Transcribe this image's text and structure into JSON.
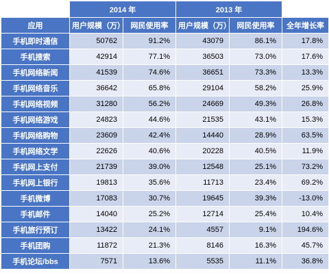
{
  "header": {
    "year_2014": "2014 年",
    "year_2013": "2013 年",
    "app": "应用",
    "users_2014": "用户规模（万）",
    "rate_2014": "网民使用率",
    "users_2013": "用户规模（万）",
    "rate_2013": "网民使用率",
    "growth": "全年增长率"
  },
  "rows": [
    {
      "app": "手机即时通信",
      "u14": "50762",
      "r14": "91.2%",
      "u13": "43079",
      "r13": "86.1%",
      "g": "17.8%"
    },
    {
      "app": "手机搜索",
      "u14": "42914",
      "r14": "77.1%",
      "u13": "36503",
      "r13": "73.0%",
      "g": "17.6%"
    },
    {
      "app": "手机网络新闻",
      "u14": "41539",
      "r14": "74.6%",
      "u13": "36651",
      "r13": "73.3%",
      "g": "13.3%"
    },
    {
      "app": "手机网络音乐",
      "u14": "36642",
      "r14": "65.8%",
      "u13": "29104",
      "r13": "58.2%",
      "g": "25.9%"
    },
    {
      "app": "手机网络视频",
      "u14": "31280",
      "r14": "56.2%",
      "u13": "24669",
      "r13": "49.3%",
      "g": "26.8%"
    },
    {
      "app": "手机网络游戏",
      "u14": "24823",
      "r14": "44.6%",
      "u13": "21535",
      "r13": "43.1%",
      "g": "15.3%"
    },
    {
      "app": "手机网络购物",
      "u14": "23609",
      "r14": "42.4%",
      "u13": "14440",
      "r13": "28.9%",
      "g": "63.5%"
    },
    {
      "app": "手机网络文学",
      "u14": "22626",
      "r14": "40.6%",
      "u13": "20228",
      "r13": "40.5%",
      "g": "11.9%"
    },
    {
      "app": "手机网上支付",
      "u14": "21739",
      "r14": "39.0%",
      "u13": "12548",
      "r13": "25.1%",
      "g": "73.2%"
    },
    {
      "app": "手机网上银行",
      "u14": "19813",
      "r14": "35.6%",
      "u13": "11713",
      "r13": "23.4%",
      "g": "69.2%"
    },
    {
      "app": "手机微博",
      "u14": "17083",
      "r14": "30.7%",
      "u13": "19645",
      "r13": "39.3%",
      "g": "-13.0%"
    },
    {
      "app": "手机邮件",
      "u14": "14040",
      "r14": "25.2%",
      "u13": "12714",
      "r13": "25.4%",
      "g": "10.4%"
    },
    {
      "app": "手机旅行预订",
      "u14": "13422",
      "r14": "24.1%",
      "u13": "4557",
      "r13": "9.1%",
      "g": "194.6%"
    },
    {
      "app": "手机团购",
      "u14": "11872",
      "r14": "21.3%",
      "u13": "8146",
      "r13": "16.3%",
      "g": "45.7%"
    },
    {
      "app": "手机论坛/bbs",
      "u14": "7571",
      "r14": "13.6%",
      "u13": "5535",
      "r13": "11.1%",
      "g": "36.8%"
    }
  ]
}
